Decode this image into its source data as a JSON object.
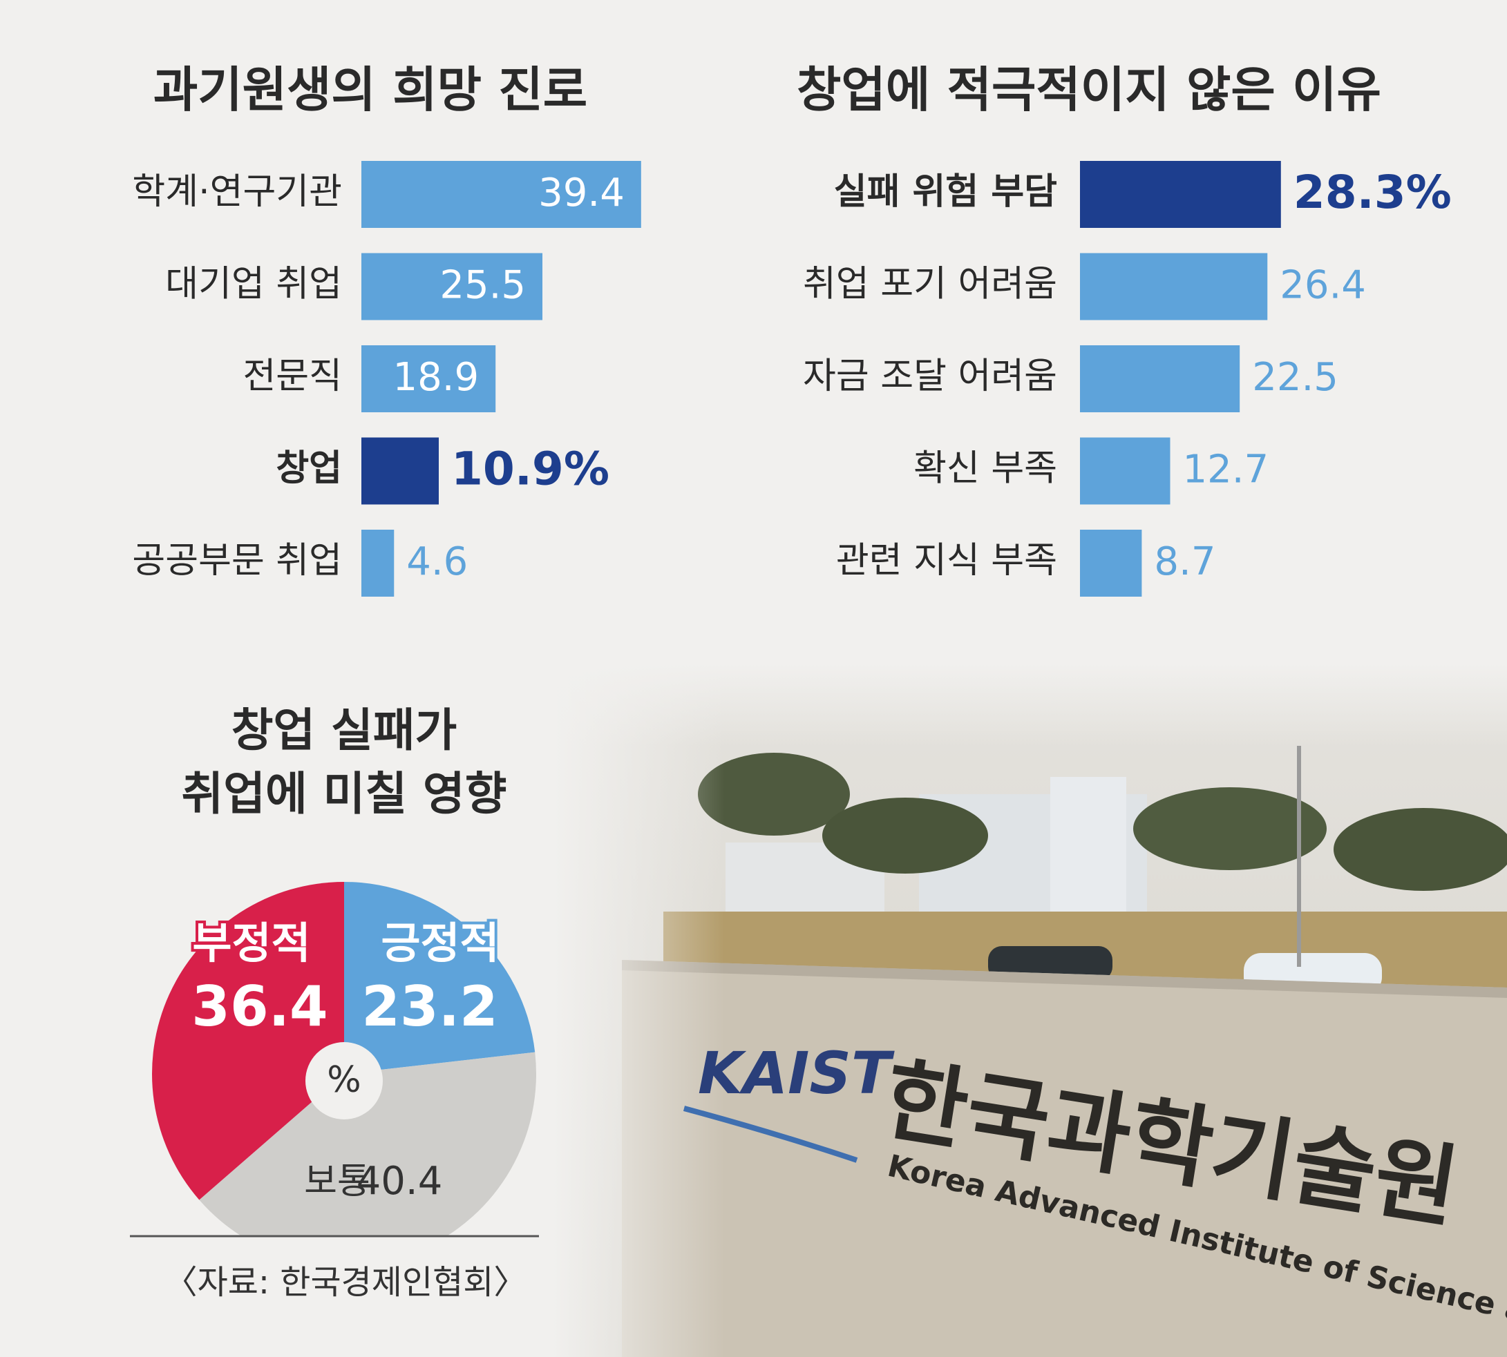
{
  "chart_data": [
    {
      "type": "hbar",
      "title": "과기원생의 희망 진로",
      "categories": [
        "학계·연구기관",
        "대기업 취업",
        "전문직",
        "창업",
        "공공부문 취업"
      ],
      "values": [
        39.4,
        25.5,
        18.9,
        10.9,
        4.6
      ],
      "value_labels": [
        "39.4",
        "25.5",
        "18.9",
        "10.9%",
        "4.6"
      ],
      "colors": [
        "#5ea3da",
        "#5ea3da",
        "#5ea3da",
        "#1d3e8e",
        "#5ea3da"
      ],
      "highlight": 3,
      "value_labels_inside": true,
      "xlim": [
        0,
        40
      ]
    },
    {
      "type": "hbar",
      "title": "창업에 적극적이지 않은 이유",
      "categories": [
        "실패 위험 부담",
        "취업 포기 어려움",
        "자금 조달 어려움",
        "확신 부족",
        "관련 지식 부족"
      ],
      "values": [
        28.3,
        26.4,
        22.5,
        12.7,
        8.7
      ],
      "value_labels": [
        "28.3%",
        "26.4",
        "22.5",
        "12.7",
        "8.7"
      ],
      "colors": [
        "#1d3e8e",
        "#5ea3da",
        "#5ea3da",
        "#5ea3da",
        "#5ea3da"
      ],
      "highlight": 0,
      "value_labels_inside": false,
      "xlim": [
        0,
        40
      ]
    },
    {
      "type": "pie",
      "title": [
        "창업 실패가",
        "취업에 미칠 영향"
      ],
      "categories": [
        "긍정적",
        "보통",
        "부정적"
      ],
      "values": [
        23.2,
        40.4,
        36.4
      ],
      "colors": [
        "#5ea3da",
        "#cfcecb",
        "#d8204a"
      ],
      "center_label": "%"
    }
  ],
  "source": "〈자료: 한국경제인협회〉",
  "photo": {
    "logo": "KAIST",
    "sign": "한국과학기술원",
    "sign_english": "Korea Advanced Institute of Science and Techn"
  }
}
